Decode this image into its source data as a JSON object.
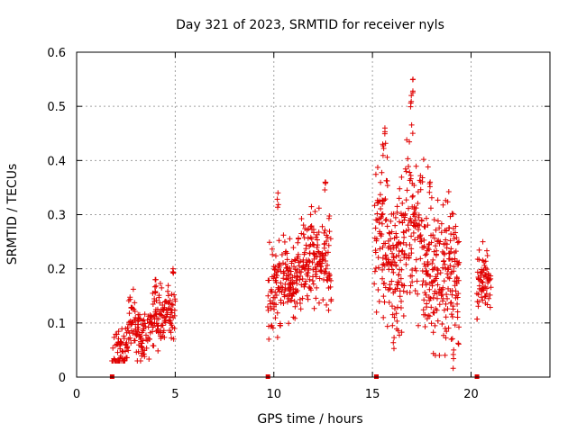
{
  "chart_data": {
    "type": "scatter",
    "title": "Day 321 of 2023, SRMTID for receiver nyls",
    "xlabel": "GPS time / hours",
    "ylabel": "SRMTID / TECUs",
    "xlim": [
      0,
      24
    ],
    "ylim": [
      0,
      0.6
    ],
    "xticks": [
      0,
      5,
      10,
      15,
      20
    ],
    "xtick_labels": [
      "0",
      "5",
      "10",
      "15",
      "20"
    ],
    "yticks": [
      0,
      0.1,
      0.2,
      0.3,
      0.4,
      0.5,
      0.6
    ],
    "ytick_labels": [
      "0",
      "0.1",
      "0.2",
      "0.3",
      "0.4",
      "0.5",
      "0.6"
    ],
    "grid": true,
    "marker": "+",
    "color": "#e00000",
    "zero_markers_x": [
      1.8,
      9.7,
      15.2,
      20.3
    ],
    "segments": [
      {
        "start": 1.8,
        "end": 5.0,
        "step": 0.022,
        "lo": 0.03,
        "hi": 0.21,
        "trend": [
          [
            1.8,
            0.05
          ],
          [
            2.3,
            0.05
          ],
          [
            2.8,
            0.11
          ],
          [
            3.3,
            0.07
          ],
          [
            3.6,
            0.08
          ],
          [
            4.0,
            0.11
          ],
          [
            4.5,
            0.12
          ],
          [
            5.0,
            0.12
          ]
        ]
      },
      {
        "start": 9.7,
        "end": 12.9,
        "step": 0.02,
        "lo": 0.07,
        "hi": 0.35,
        "trend": [
          [
            9.7,
            0.16
          ],
          [
            10.2,
            0.17
          ],
          [
            10.5,
            0.19
          ],
          [
            11.0,
            0.17
          ],
          [
            11.5,
            0.21
          ],
          [
            12.0,
            0.22
          ],
          [
            12.5,
            0.22
          ],
          [
            12.9,
            0.2
          ]
        ]
      },
      {
        "start": 15.1,
        "end": 19.4,
        "step": 0.017,
        "lo": 0.04,
        "hi": 0.55,
        "trend": [
          [
            15.1,
            0.3
          ],
          [
            15.6,
            0.26
          ],
          [
            16.0,
            0.2
          ],
          [
            16.5,
            0.22
          ],
          [
            16.9,
            0.3
          ],
          [
            17.3,
            0.28
          ],
          [
            17.8,
            0.22
          ],
          [
            18.3,
            0.2
          ],
          [
            18.9,
            0.2
          ],
          [
            19.4,
            0.16
          ]
        ]
      },
      {
        "start": 20.3,
        "end": 21.0,
        "step": 0.02,
        "lo": 0.07,
        "hi": 0.25,
        "trend": [
          [
            20.3,
            0.15
          ],
          [
            20.6,
            0.19
          ],
          [
            21.0,
            0.17
          ]
        ]
      }
    ],
    "peaks": [
      {
        "x": 17.05,
        "y": 0.55
      },
      {
        "x": 16.95,
        "y": 0.52
      },
      {
        "x": 15.65,
        "y": 0.46
      },
      {
        "x": 15.55,
        "y": 0.43
      },
      {
        "x": 17.9,
        "y": 0.36
      },
      {
        "x": 10.2,
        "y": 0.34
      },
      {
        "x": 12.6,
        "y": 0.36
      },
      {
        "x": 4.9,
        "y": 0.2
      },
      {
        "x": 4.0,
        "y": 0.18
      },
      {
        "x": 19.1,
        "y": 0.05
      }
    ]
  }
}
